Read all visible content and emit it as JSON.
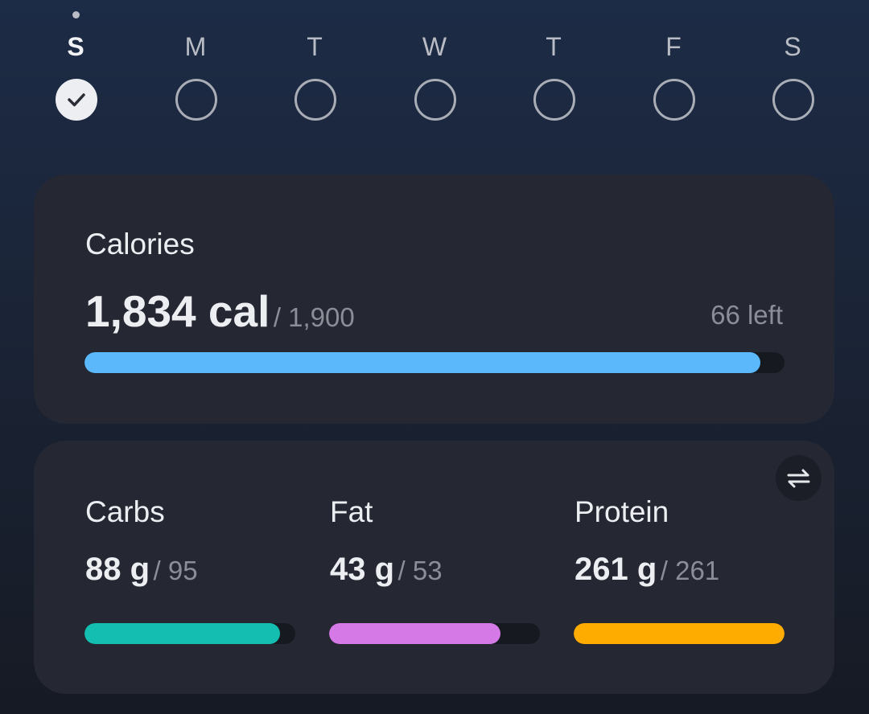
{
  "week": {
    "days": [
      {
        "letter": "S",
        "done": true,
        "today": true
      },
      {
        "letter": "M",
        "done": false,
        "today": false
      },
      {
        "letter": "T",
        "done": false,
        "today": false
      },
      {
        "letter": "W",
        "done": false,
        "today": false
      },
      {
        "letter": "T",
        "done": false,
        "today": false
      },
      {
        "letter": "F",
        "done": false,
        "today": false
      },
      {
        "letter": "S",
        "done": false,
        "today": false
      }
    ]
  },
  "calories": {
    "title": "Calories",
    "consumed": 1834,
    "consumed_label": "1,834 cal",
    "goal": 1900,
    "goal_label": "/ 1,900",
    "left_label": "66 left",
    "color": "#5ab8fb"
  },
  "macros": [
    {
      "name": "Carbs",
      "consumed": 88,
      "consumed_label": "88 g",
      "goal": 95,
      "goal_label": "/ 95",
      "color": "#14bfb1"
    },
    {
      "name": "Fat",
      "consumed": 43,
      "consumed_label": "43 g",
      "goal": 53,
      "goal_label": "/ 53",
      "color": "#d479e6"
    },
    {
      "name": "Protein",
      "consumed": 261,
      "consumed_label": "261 g",
      "goal": 261,
      "goal_label": "/ 261",
      "color": "#ffac00"
    }
  ]
}
